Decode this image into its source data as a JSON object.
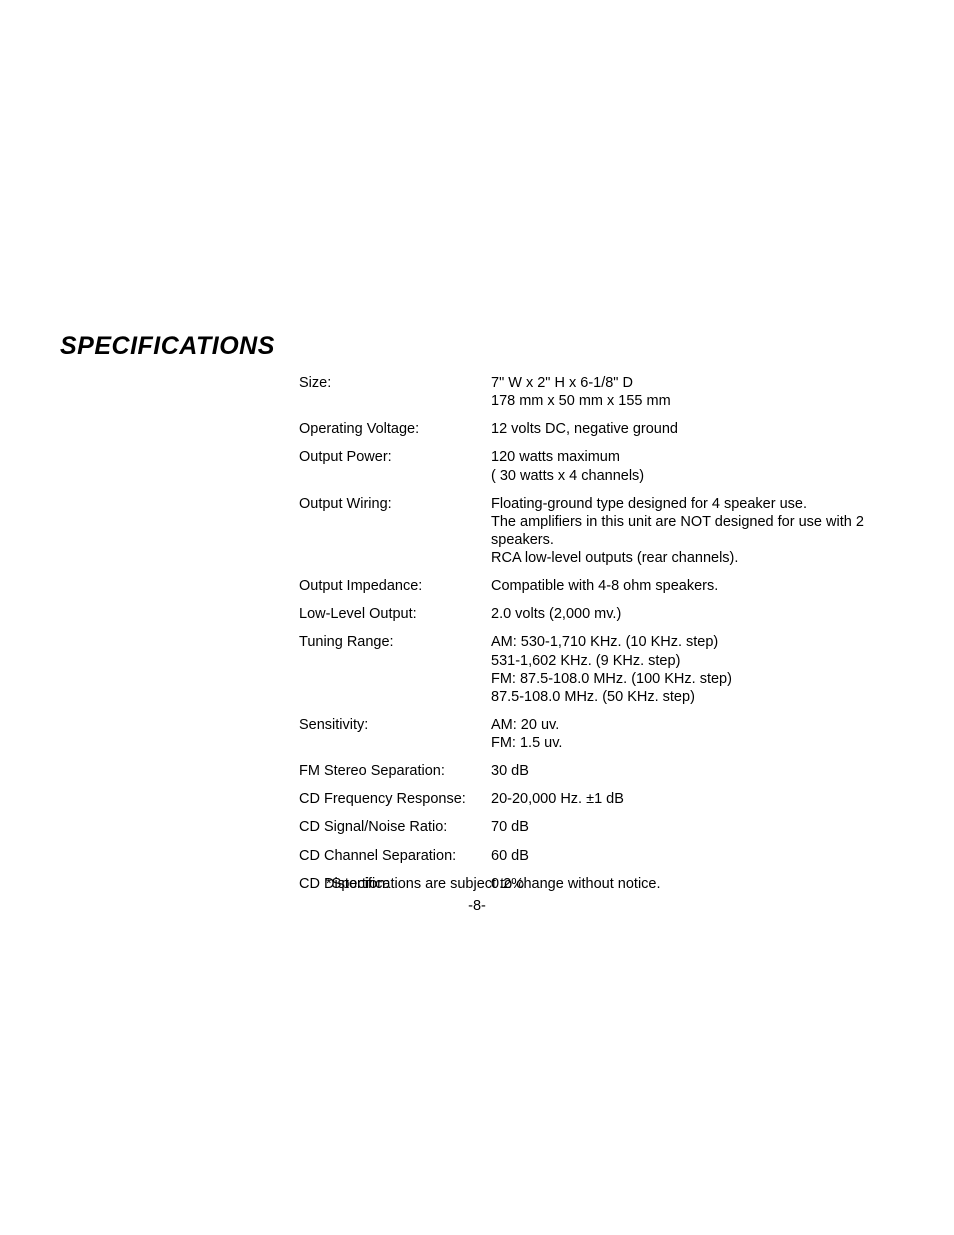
{
  "title": "SPECIFICATIONS",
  "specs": [
    {
      "label": "Size:",
      "value": "     7\" W   x    2\" H   x  6-1/8\" D\n178 mm x  50 mm x  155 mm"
    },
    {
      "label": "Operating Voltage:",
      "value": "12 volts DC, negative ground"
    },
    {
      "label": "Output Power:",
      "value": "120 watts maximum\n( 30 watts x 4 channels)"
    },
    {
      "label": "Output Wiring:",
      "value": "Floating-ground type designed for 4 speaker use.\nThe amplifiers in this unit are NOT designed for use with 2 speakers.\nRCA low-level outputs (rear channels)."
    },
    {
      "label": "Output Impedance:",
      "value": "Compatible with 4-8 ohm speakers."
    },
    {
      "label": "Low-Level Output:",
      "value": "2.0 volts (2,000 mv.)"
    },
    {
      "label": "Tuning Range:",
      "value": "AM: 530-1,710 KHz. (10 KHz. step)\n        531-1,602 KHz. (9 KHz. step)\nFM: 87.5-108.0 MHz. (100 KHz. step)\n        87.5-108.0 MHz. (50 KHz. step)"
    },
    {
      "label": "Sensitivity:",
      "value": "AM:  20 uv.\nFM:  1.5 uv."
    },
    {
      "label": "FM Stereo Separation:",
      "value": "30 dB"
    },
    {
      "label": "CD Frequency Response:",
      "value": "20-20,000 Hz. ±1 dB"
    },
    {
      "label": "CD Signal/Noise Ratio:",
      "value": "70 dB"
    },
    {
      "label": "CD Channel Separation:",
      "value": "60 dB"
    },
    {
      "label": "CD Distortion:",
      "value": "0.2%"
    }
  ],
  "footnote": "*Specifications are subject to change without notice.",
  "page_number": "-8-"
}
